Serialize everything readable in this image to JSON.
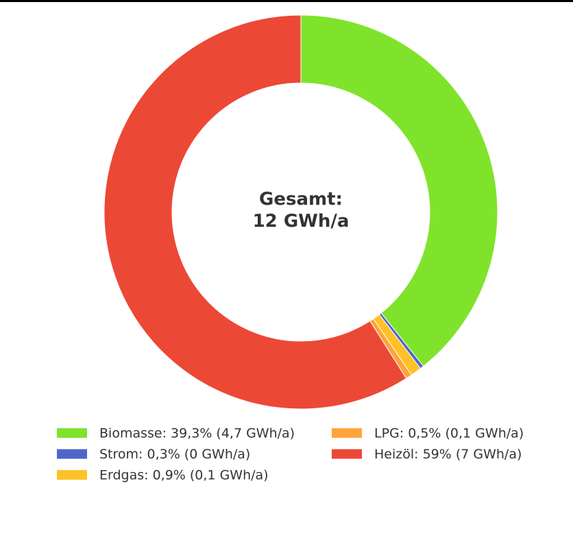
{
  "chart_data": {
    "type": "donut",
    "center_label": [
      "Gesamt:",
      "12 GWh/a"
    ],
    "categories": [
      "Biomasse: 39,3% (4,7 GWh/a)",
      "Strom: 0,3% (0 GWh/a)",
      "Erdgas: 0,9% (0,1 GWh/a)",
      "LPG: 0,5% (0,1 GWh/a)",
      "Heizöl: 59% (7 GWh/a)"
    ],
    "values": [
      39.3,
      0.3,
      0.9,
      0.5,
      59
    ],
    "colors": [
      "#80e32b",
      "#4f66c9",
      "#ffc125",
      "#ffa43a",
      "#ec4836"
    ]
  }
}
